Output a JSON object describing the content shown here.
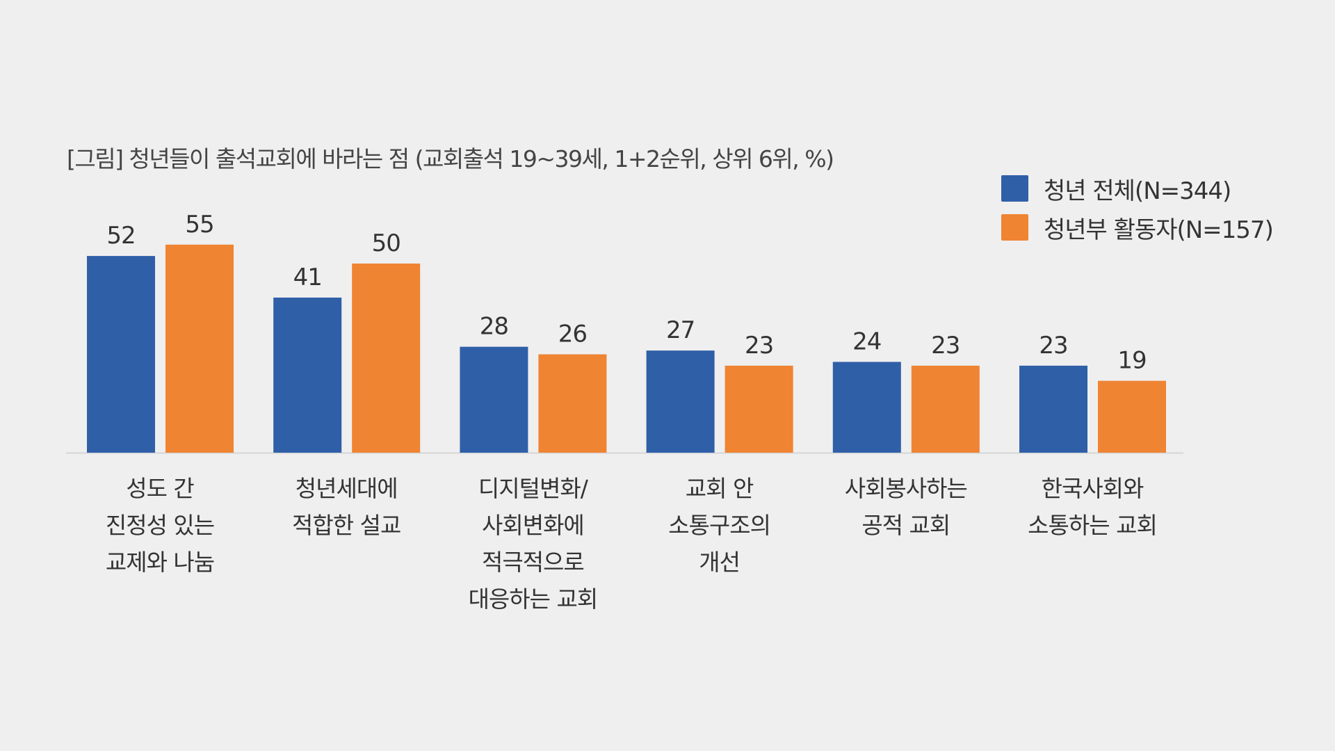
{
  "chart_data": {
    "type": "bar",
    "title": "[그림] 청년들이 출석교회에 바라는 점 (교회출석 19~39세, 1+2순위, 상위 6위, %)",
    "categories": [
      "성도 간\n진정성 있는\n교제와 나눔",
      "청년세대에\n적합한 설교",
      "디지털변화/\n사회변화에\n적극적으로\n대응하는 교회",
      "교회 안\n소통구조의\n개선",
      "사회봉사하는\n공적 교회",
      "한국사회와\n소통하는 교회"
    ],
    "series": [
      {
        "name": "청년 전체(N=344)",
        "color": "#2f5fa7",
        "values": [
          52,
          41,
          28,
          27,
          24,
          23
        ]
      },
      {
        "name": "청년부 활동자(N=157)",
        "color": "#ef8433",
        "values": [
          55,
          50,
          26,
          23,
          23,
          19
        ]
      }
    ],
    "xlabel": "",
    "ylabel": "",
    "ylim": [
      0,
      60
    ],
    "grid": false,
    "legend": "top-right",
    "data_labels": true
  }
}
